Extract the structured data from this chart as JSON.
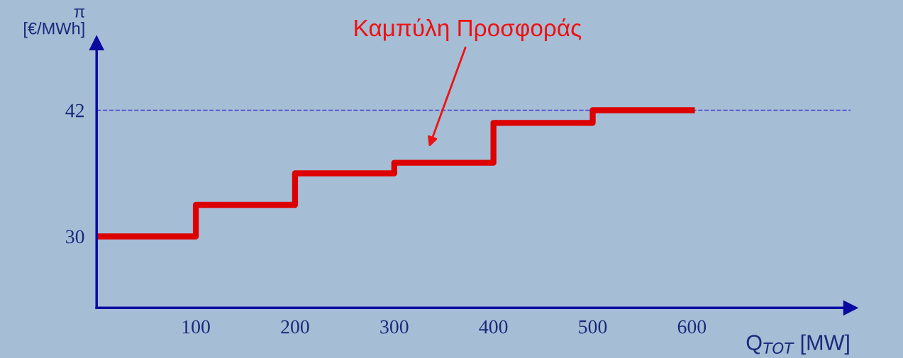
{
  "chart_data": {
    "type": "step",
    "xlabel": "Q$_{TOT}$ [MW]",
    "ylabel": "π\n[€/MWh]",
    "x": [
      0,
      100,
      200,
      300,
      400,
      500,
      600
    ],
    "series": [
      {
        "color": "#dd0000",
        "values": [
          30,
          33,
          36,
          37,
          40.8,
          42,
          42
        ]
      }
    ],
    "xlim": [
      0,
      760
    ],
    "ylim": [
      23.2,
      48.4
    ],
    "xticks": [
      100,
      200,
      300,
      400,
      500,
      600
    ],
    "yticks": [
      30,
      42
    ],
    "ref_lines": [
      {
        "axis": "y",
        "value": 42,
        "color": "#4444cc",
        "line_style": "dashed"
      }
    ],
    "annotations": [
      "Καμπύλη Προσφοράς"
    ],
    "grid": false,
    "legend": false
  }
}
